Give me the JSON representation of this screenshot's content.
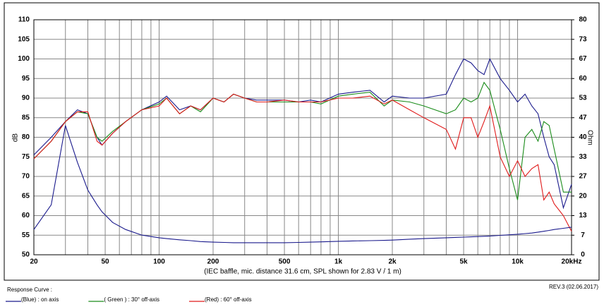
{
  "chart_data": {
    "type": "line",
    "x_log": true,
    "ylabel": "dB",
    "y2label": "Ohm",
    "xlabel": "(IEC baffle, mic. distance 31.6 cm, SPL shown for 2.83 V / 1 m)",
    "legend_title": "Response Curve :",
    "revision": "REV.3 (02.06.2017)",
    "grid": true,
    "xlim": [
      20,
      20000
    ],
    "xticks": [
      20,
      50,
      100,
      200,
      500,
      {
        "value": 1000,
        "label": "1k"
      },
      {
        "value": 2000,
        "label": "2k"
      },
      {
        "value": 5000,
        "label": "5k"
      },
      {
        "value": 10000,
        "label": "10k"
      },
      {
        "value": 20000,
        "label": "20kHz"
      }
    ],
    "xminor": [
      30,
      40,
      60,
      70,
      80,
      90,
      300,
      400,
      600,
      700,
      800,
      900,
      3000,
      4000,
      6000,
      7000,
      8000,
      9000
    ],
    "ylim": [
      50,
      110
    ],
    "yticks": [
      50,
      55,
      60,
      65,
      70,
      75,
      80,
      85,
      90,
      95,
      100,
      105,
      110
    ],
    "y2lim": [
      0,
      80
    ],
    "y2ticks": [
      0,
      {
        "value": 6.667,
        "label": "7"
      },
      {
        "value": 13.333,
        "label": "13"
      },
      20,
      {
        "value": 26.667,
        "label": "27"
      },
      {
        "value": 33.333,
        "label": "33"
      },
      40,
      {
        "value": 46.667,
        "label": "47"
      },
      {
        "value": 53.333,
        "label": "53"
      },
      60,
      {
        "value": 66.667,
        "label": "67"
      },
      {
        "value": 73.333,
        "label": "73"
      },
      80
    ],
    "x": [
      20,
      25,
      30,
      35,
      40,
      45,
      48,
      55,
      65,
      80,
      100,
      110,
      130,
      150,
      170,
      200,
      230,
      260,
      300,
      350,
      400,
      500,
      600,
      700,
      800,
      1000,
      1200,
      1500,
      1800,
      2000,
      2500,
      3000,
      4000,
      4500,
      5000,
      5500,
      6000,
      6500,
      7000,
      8000,
      9000,
      10000,
      11000,
      12000,
      13000,
      14000,
      15000,
      16000,
      18000,
      20000
    ],
    "series": [
      {
        "name": "(Blue) : on axis",
        "color": "#1a1a8c",
        "values": [
          75.5,
          80,
          84,
          87,
          86,
          80,
          78,
          81,
          84,
          87,
          89,
          90.5,
          87,
          88,
          87,
          90,
          89,
          91,
          90,
          89.5,
          89.5,
          89.5,
          89,
          89.5,
          89,
          91,
          91.5,
          92,
          89,
          90.5,
          90,
          90,
          91,
          96,
          100,
          99,
          97,
          96,
          100,
          95,
          92,
          89,
          91,
          88,
          86,
          80,
          75,
          73,
          62,
          68
        ]
      },
      {
        "name": "( Green ) : 30° off-axis",
        "color": "#1a8c1a",
        "values": [
          74.5,
          79,
          84,
          86.5,
          86,
          80,
          79,
          81.5,
          84,
          87,
          88.5,
          90,
          86,
          88,
          86.5,
          90,
          89,
          91,
          90,
          89,
          89,
          89,
          89,
          89,
          88.5,
          90.5,
          91,
          91.5,
          88,
          89.5,
          89,
          88,
          86,
          87,
          90,
          89,
          90,
          94,
          92,
          82,
          72,
          64,
          80,
          82,
          79,
          84,
          83,
          77,
          66,
          66
        ]
      },
      {
        "name": "(Red) : 60° off-axis",
        "color": "#e01a1a",
        "values": [
          74.5,
          79,
          84,
          86.5,
          86.5,
          79,
          78,
          81,
          84,
          87,
          88,
          90,
          86,
          88,
          87,
          90,
          89,
          91,
          90,
          89,
          89,
          89.5,
          89,
          89,
          89,
          90,
          90,
          90.5,
          88.5,
          89.5,
          87,
          85,
          82,
          77,
          85,
          85,
          80,
          84,
          88,
          75,
          70,
          74,
          70,
          72,
          73,
          64,
          66,
          63,
          60,
          56
        ]
      },
      {
        "color": "#1a1a8c",
        "axis": "y2",
        "values": [
          8.6,
          17,
          44,
          31.5,
          22,
          17,
          14.6,
          11,
          8.6,
          6.7,
          5.8,
          5.5,
          5.1,
          4.8,
          4.5,
          4.3,
          4.2,
          4.1,
          4.1,
          4.1,
          4.1,
          4.1,
          4.2,
          4.3,
          4.4,
          4.6,
          4.7,
          4.8,
          4.9,
          5,
          5.3,
          5.5,
          5.8,
          5.9,
          6,
          6.1,
          6.2,
          6.3,
          6.4,
          6.6,
          6.8,
          7,
          7.2,
          7.4,
          7.7,
          8,
          8.3,
          8.6,
          9,
          9.4
        ]
      }
    ]
  }
}
